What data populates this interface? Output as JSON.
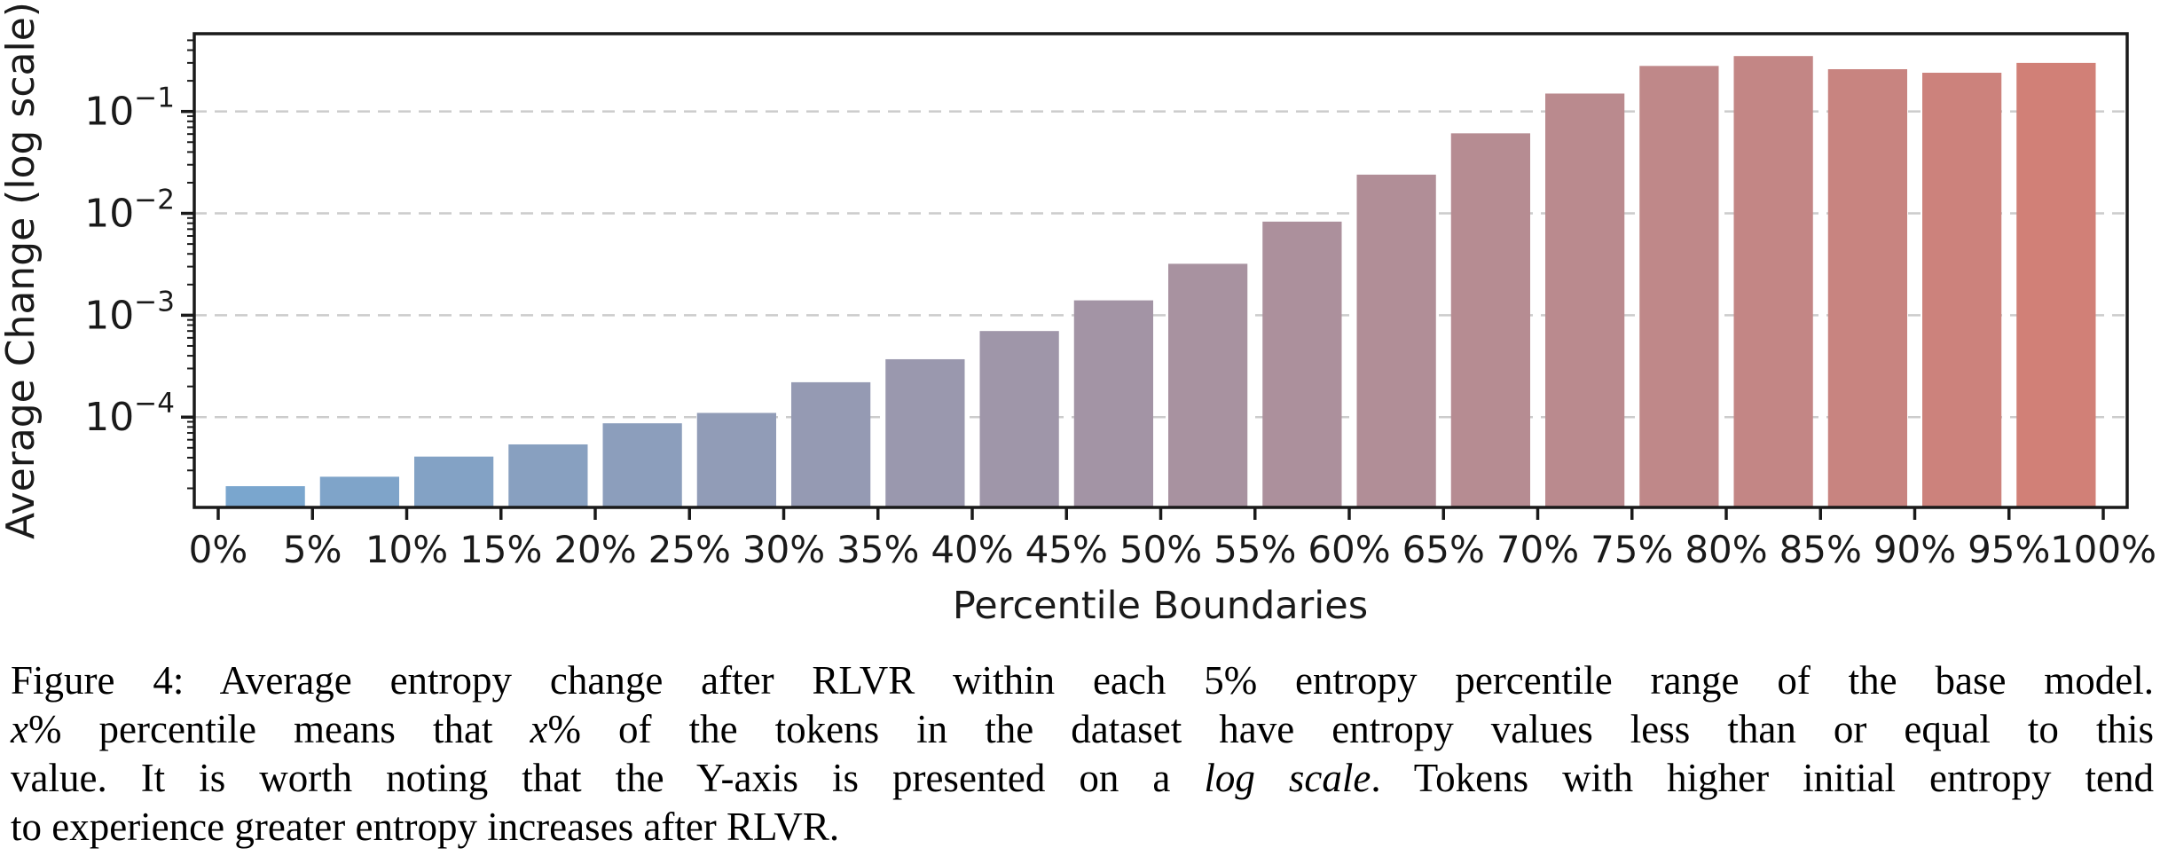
{
  "chart_data": {
    "type": "bar",
    "yscale": "log",
    "title": "",
    "xlabel": "Percentile Boundaries",
    "ylabel": "Average Change (log scale)",
    "categories": [
      "0-5%",
      "5-10%",
      "10-15%",
      "15-20%",
      "20-25%",
      "25-30%",
      "30-35%",
      "35-40%",
      "40-45%",
      "45-50%",
      "50-55%",
      "55-60%",
      "60-65%",
      "65-70%",
      "70-75%",
      "75-80%",
      "80-85%",
      "85-90%",
      "90-95%",
      "95-100%"
    ],
    "values": [
      2.1e-05,
      2.6e-05,
      4.1e-05,
      5.4e-05,
      8.7e-05,
      0.00011,
      0.00022,
      0.00037,
      0.0007,
      0.0014,
      0.0032,
      0.0083,
      0.024,
      0.061,
      0.15,
      0.28,
      0.35,
      0.26,
      0.24,
      0.3
    ],
    "x_tick_labels": [
      "0%",
      "5%",
      "10%",
      "15%",
      "20%",
      "25%",
      "30%",
      "35%",
      "40%",
      "45%",
      "50%",
      "55%",
      "60%",
      "65%",
      "70%",
      "75%",
      "80%",
      "85%",
      "90%",
      "95%",
      "100%"
    ],
    "y_tick_exponents": [
      -1,
      -2,
      -3,
      -4
    ],
    "ylim": [
      1.3e-05,
      0.58
    ],
    "grid": "horizontal dashed",
    "legend": "none",
    "bar_color_start": "#7aa6ce",
    "bar_color_end": "#d18077",
    "gridline_color": "#cccccc",
    "axis_color": "#1a1a1a"
  },
  "caption": {
    "lines": [
      [
        {
          "t": "Figure 4: Average entropy change after RLVR within each 5% entropy percentile range of the base model."
        }
      ],
      [
        {
          "t": "x",
          "i": true
        },
        {
          "t": "% percentile means that ",
          "i": false
        },
        {
          "t": "x",
          "i": true
        },
        {
          "t": "% of the tokens in the dataset have entropy values less than or equal to this",
          "i": false
        }
      ],
      [
        {
          "t": "value. It is worth noting that the Y-axis is presented on a ",
          "i": false
        },
        {
          "t": "log scale",
          "i": true
        },
        {
          "t": ". Tokens with higher initial entropy tend",
          "i": false
        }
      ],
      [
        {
          "t": "to experience greater entropy increases after RLVR.",
          "i": false
        }
      ]
    ]
  }
}
